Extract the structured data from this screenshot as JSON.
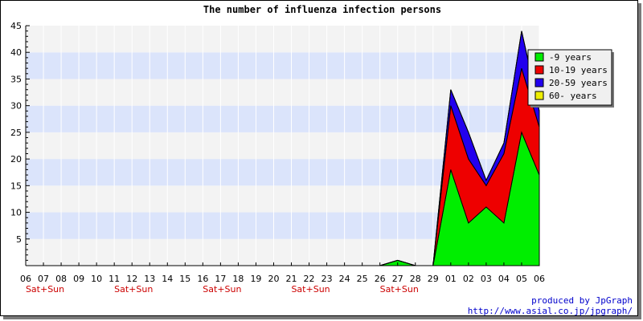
{
  "chart_data": {
    "type": "area",
    "stacked": true,
    "title": "The number of influenza infection persons",
    "xlabel": "",
    "ylabel": "",
    "ylim": [
      0,
      45
    ],
    "y_ticks": [
      5,
      10,
      15,
      20,
      25,
      30,
      35,
      40,
      45
    ],
    "categories": [
      "06",
      "07",
      "08",
      "09",
      "10",
      "11",
      "12",
      "13",
      "14",
      "15",
      "16",
      "17",
      "18",
      "19",
      "20",
      "21",
      "22",
      "23",
      "24",
      "25",
      "26",
      "27",
      "28",
      "29",
      "01",
      "02",
      "03",
      "04",
      "05",
      "06"
    ],
    "weekend_marks": [
      {
        "category_index": 1,
        "label": "Sat+Sun"
      },
      {
        "category_index": 6,
        "label": "Sat+Sun"
      },
      {
        "category_index": 11,
        "label": "Sat+Sun"
      },
      {
        "category_index": 16,
        "label": "Sat+Sun"
      },
      {
        "category_index": 21,
        "label": "Sat+Sun"
      }
    ],
    "grid": "horizontal bands",
    "band_colors": [
      "#dbe4fb",
      "#f3f3f3"
    ],
    "legend_position": "top-right",
    "series": [
      {
        "name": "-9 years",
        "color": "#00ee00",
        "values": [
          0,
          0,
          0,
          0,
          0,
          0,
          0,
          0,
          0,
          0,
          0,
          0,
          0,
          0,
          0,
          0,
          0,
          0,
          0,
          0,
          0,
          1,
          0,
          0,
          18,
          8,
          11,
          8,
          25,
          17
        ]
      },
      {
        "name": "10-19 years",
        "color": "#ee0000",
        "values": [
          0,
          0,
          0,
          0,
          0,
          0,
          0,
          0,
          0,
          0,
          0,
          0,
          0,
          0,
          0,
          0,
          0,
          0,
          0,
          0,
          0,
          0,
          0,
          0,
          12,
          12,
          4,
          13,
          12,
          9
        ]
      },
      {
        "name": "20-59 years",
        "color": "#2200ee",
        "values": [
          0,
          0,
          0,
          0,
          0,
          0,
          0,
          0,
          0,
          0,
          0,
          0,
          0,
          0,
          0,
          0,
          0,
          0,
          0,
          0,
          0,
          0,
          0,
          0,
          3,
          5,
          1,
          2,
          7,
          3
        ]
      },
      {
        "name": "60- years",
        "color": "#eeee00",
        "values": [
          0,
          0,
          0,
          0,
          0,
          0,
          0,
          0,
          0,
          0,
          0,
          0,
          0,
          0,
          0,
          0,
          0,
          0,
          0,
          0,
          0,
          0,
          0,
          0,
          0,
          0,
          0,
          0,
          0,
          0
        ]
      }
    ]
  },
  "credits": {
    "line1": "produced by JpGraph",
    "line2": "http://www.asial.co.jp/jpgraph/"
  }
}
